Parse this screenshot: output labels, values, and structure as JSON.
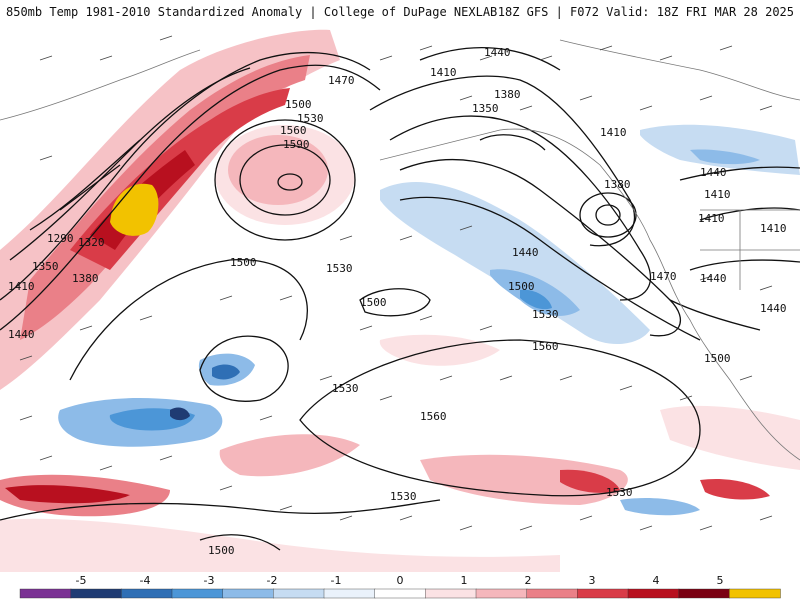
{
  "header": {
    "title_left": "850mb Temp 1981-2010 Standardized Anomaly | College of DuPage NEXLAB",
    "title_right": "18Z GFS | F072 Valid: 18Z FRI MAR 28 2025"
  },
  "map": {
    "variable": "850mb temperature standardized anomaly",
    "contour_field": "850mb geopotential height (dam)",
    "height_labels": [
      "1470",
      "1500",
      "1530",
      "1560",
      "1590",
      "1290",
      "1320",
      "1350",
      "1380",
      "1410",
      "1440",
      "1500",
      "1530",
      "1440",
      "1410",
      "1350",
      "1380",
      "1410",
      "1440",
      "1380",
      "1410",
      "1440",
      "1470",
      "1500",
      "1530",
      "1560",
      "1410",
      "1440",
      "1500",
      "1530",
      "1560",
      "1530",
      "1530",
      "1500",
      "1500",
      "1440",
      "1410"
    ]
  },
  "colorbar": {
    "ticks": [
      "-5",
      "-4",
      "-3",
      "-2",
      "-1",
      "0",
      "1",
      "2",
      "3",
      "4",
      "5"
    ],
    "colors": [
      "#7b3294",
      "#1f3b73",
      "#2f6fb5",
      "#4c96d7",
      "#8dbbe8",
      "#c6dcf2",
      "#eaf2fb",
      "#ffffff",
      "#fbe2e4",
      "#f5b7bc",
      "#ea8088",
      "#d93c48",
      "#b8101f",
      "#7a0012",
      "#f2c200"
    ]
  }
}
